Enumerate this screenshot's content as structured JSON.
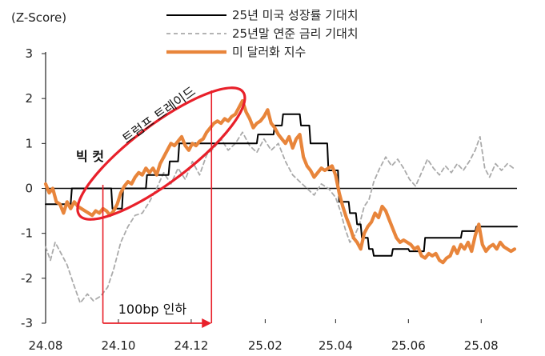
{
  "chart_data": {
    "type": "line",
    "unit_label": "(Z-Score)",
    "xlabel": "",
    "ylabel": "",
    "ylim": [
      -3,
      3
    ],
    "yticks": [
      3,
      2,
      1,
      0,
      -1,
      -2,
      -3
    ],
    "xlim": [
      "2024-08-01",
      "2025-08-31"
    ],
    "xticks": [
      {
        "date": "2024-08-01",
        "label": "24.08"
      },
      {
        "date": "2024-10-01",
        "label": "24.10"
      },
      {
        "date": "2024-12-01",
        "label": "24.12"
      },
      {
        "date": "2025-02-01",
        "label": "25.02"
      },
      {
        "date": "2025-04-01",
        "label": "25.04"
      },
      {
        "date": "2025-06-01",
        "label": "25.06"
      },
      {
        "date": "2025-08-01",
        "label": "25.08"
      }
    ],
    "grid": false,
    "legend_position": "top-right",
    "series": [
      {
        "name": "25년 미국 성장률 기대치",
        "color": "#000000",
        "style": "solid",
        "kind": "step",
        "points": [
          [
            "2024-08-01",
            -0.35
          ],
          [
            "2024-08-22",
            -0.35
          ],
          [
            "2024-08-23",
            0.0
          ],
          [
            "2024-09-25",
            0.0
          ],
          [
            "2024-09-26",
            -0.45
          ],
          [
            "2024-10-04",
            -0.45
          ],
          [
            "2024-10-05",
            0.0
          ],
          [
            "2024-10-24",
            0.0
          ],
          [
            "2024-10-25",
            0.3
          ],
          [
            "2024-11-12",
            0.3
          ],
          [
            "2024-11-13",
            0.6
          ],
          [
            "2024-11-20",
            0.6
          ],
          [
            "2024-11-21",
            1.0
          ],
          [
            "2025-01-25",
            1.0
          ],
          [
            "2025-01-26",
            1.2
          ],
          [
            "2025-02-08",
            1.2
          ],
          [
            "2025-02-09",
            1.4
          ],
          [
            "2025-02-15",
            1.4
          ],
          [
            "2025-02-16",
            1.65
          ],
          [
            "2025-03-02",
            1.65
          ],
          [
            "2025-03-03",
            1.4
          ],
          [
            "2025-03-10",
            1.4
          ],
          [
            "2025-03-11",
            1.0
          ],
          [
            "2025-03-25",
            1.0
          ],
          [
            "2025-03-26",
            0.4
          ],
          [
            "2025-04-03",
            0.4
          ],
          [
            "2025-04-04",
            -0.3
          ],
          [
            "2025-04-12",
            -0.3
          ],
          [
            "2025-04-13",
            -0.55
          ],
          [
            "2025-04-18",
            -0.55
          ],
          [
            "2025-04-19",
            -0.8
          ],
          [
            "2025-04-22",
            -0.8
          ],
          [
            "2025-04-23",
            -1.1
          ],
          [
            "2025-04-28",
            -1.1
          ],
          [
            "2025-04-29",
            -1.35
          ],
          [
            "2025-05-02",
            -1.35
          ],
          [
            "2025-05-03",
            -1.5
          ],
          [
            "2025-05-18",
            -1.5
          ],
          [
            "2025-05-19",
            -1.35
          ],
          [
            "2025-06-01",
            -1.35
          ],
          [
            "2025-06-02",
            -1.4
          ],
          [
            "2025-06-14",
            -1.4
          ],
          [
            "2025-06-15",
            -1.1
          ],
          [
            "2025-07-15",
            -1.1
          ],
          [
            "2025-07-16",
            -0.95
          ],
          [
            "2025-07-27",
            -0.95
          ],
          [
            "2025-07-28",
            -0.85
          ],
          [
            "2025-08-31",
            -0.85
          ]
        ]
      },
      {
        "name": "25년말 연준 금리 기대치",
        "color": "#aaaaaa",
        "style": "dashed",
        "kind": "line",
        "points": [
          [
            "2024-08-01",
            -1.3
          ],
          [
            "2024-08-05",
            -1.6
          ],
          [
            "2024-08-09",
            -1.2
          ],
          [
            "2024-08-14",
            -1.45
          ],
          [
            "2024-08-19",
            -1.7
          ],
          [
            "2024-08-24",
            -2.1
          ],
          [
            "2024-08-30",
            -2.55
          ],
          [
            "2024-09-05",
            -2.35
          ],
          [
            "2024-09-10",
            -2.5
          ],
          [
            "2024-09-16",
            -2.4
          ],
          [
            "2024-09-22",
            -2.2
          ],
          [
            "2024-09-27",
            -1.8
          ],
          [
            "2024-10-03",
            -1.2
          ],
          [
            "2024-10-09",
            -0.85
          ],
          [
            "2024-10-15",
            -0.6
          ],
          [
            "2024-10-21",
            -0.55
          ],
          [
            "2024-10-27",
            -0.3
          ],
          [
            "2024-11-02",
            0.0
          ],
          [
            "2024-11-08",
            0.35
          ],
          [
            "2024-11-14",
            0.1
          ],
          [
            "2024-11-20",
            0.45
          ],
          [
            "2024-11-26",
            0.2
          ],
          [
            "2024-12-02",
            0.6
          ],
          [
            "2024-12-08",
            0.3
          ],
          [
            "2024-12-14",
            0.75
          ],
          [
            "2024-12-20",
            0.9
          ],
          [
            "2024-12-26",
            1.1
          ],
          [
            "2025-01-01",
            0.85
          ],
          [
            "2025-01-07",
            1.0
          ],
          [
            "2025-01-13",
            1.25
          ],
          [
            "2025-01-19",
            0.95
          ],
          [
            "2025-01-25",
            0.8
          ],
          [
            "2025-01-31",
            1.1
          ],
          [
            "2025-02-06",
            0.85
          ],
          [
            "2025-02-12",
            1.0
          ],
          [
            "2025-02-18",
            0.6
          ],
          [
            "2025-02-24",
            0.3
          ],
          [
            "2025-03-02",
            0.15
          ],
          [
            "2025-03-08",
            0.0
          ],
          [
            "2025-03-14",
            -0.15
          ],
          [
            "2025-03-20",
            0.1
          ],
          [
            "2025-03-26",
            0.0
          ],
          [
            "2025-04-01",
            -0.2
          ],
          [
            "2025-04-05",
            -0.5
          ],
          [
            "2025-04-09",
            -0.9
          ],
          [
            "2025-04-13",
            -1.2
          ],
          [
            "2025-04-17",
            -1.05
          ],
          [
            "2025-04-21",
            -0.8
          ],
          [
            "2025-04-25",
            -0.4
          ],
          [
            "2025-04-29",
            -0.25
          ],
          [
            "2025-05-03",
            0.15
          ],
          [
            "2025-05-08",
            0.45
          ],
          [
            "2025-05-13",
            0.7
          ],
          [
            "2025-05-18",
            0.5
          ],
          [
            "2025-05-23",
            0.65
          ],
          [
            "2025-05-28",
            0.45
          ],
          [
            "2025-06-02",
            0.2
          ],
          [
            "2025-06-07",
            0.05
          ],
          [
            "2025-06-12",
            0.35
          ],
          [
            "2025-06-17",
            0.65
          ],
          [
            "2025-06-22",
            0.45
          ],
          [
            "2025-06-27",
            0.3
          ],
          [
            "2025-07-02",
            0.5
          ],
          [
            "2025-07-07",
            0.35
          ],
          [
            "2025-07-12",
            0.55
          ],
          [
            "2025-07-17",
            0.4
          ],
          [
            "2025-07-22",
            0.6
          ],
          [
            "2025-07-27",
            0.85
          ],
          [
            "2025-07-31",
            1.15
          ],
          [
            "2025-08-04",
            0.45
          ],
          [
            "2025-08-08",
            0.25
          ],
          [
            "2025-08-13",
            0.55
          ],
          [
            "2025-08-18",
            0.4
          ],
          [
            "2025-08-23",
            0.55
          ],
          [
            "2025-08-28",
            0.45
          ]
        ]
      },
      {
        "name": "미 달러화 지수",
        "color": "#e8853b",
        "style": "solid-thick",
        "kind": "line",
        "points": [
          [
            "2024-08-01",
            0.1
          ],
          [
            "2024-08-04",
            -0.1
          ],
          [
            "2024-08-07",
            0.0
          ],
          [
            "2024-08-10",
            -0.3
          ],
          [
            "2024-08-13",
            -0.35
          ],
          [
            "2024-08-16",
            -0.55
          ],
          [
            "2024-08-19",
            -0.3
          ],
          [
            "2024-08-22",
            -0.45
          ],
          [
            "2024-08-25",
            -0.3
          ],
          [
            "2024-08-28",
            -0.4
          ],
          [
            "2024-08-31",
            -0.45
          ],
          [
            "2024-09-03",
            -0.5
          ],
          [
            "2024-09-06",
            -0.55
          ],
          [
            "2024-09-09",
            -0.6
          ],
          [
            "2024-09-12",
            -0.5
          ],
          [
            "2024-09-15",
            -0.55
          ],
          [
            "2024-09-18",
            -0.45
          ],
          [
            "2024-09-21",
            -0.5
          ],
          [
            "2024-09-24",
            -0.6
          ],
          [
            "2024-09-27",
            -0.5
          ],
          [
            "2024-09-30",
            -0.35
          ],
          [
            "2024-10-03",
            -0.1
          ],
          [
            "2024-10-06",
            0.05
          ],
          [
            "2024-10-09",
            0.15
          ],
          [
            "2024-10-12",
            0.1
          ],
          [
            "2024-10-15",
            0.25
          ],
          [
            "2024-10-18",
            0.35
          ],
          [
            "2024-10-21",
            0.3
          ],
          [
            "2024-10-24",
            0.45
          ],
          [
            "2024-10-27",
            0.35
          ],
          [
            "2024-10-30",
            0.45
          ],
          [
            "2024-11-02",
            0.3
          ],
          [
            "2024-11-05",
            0.55
          ],
          [
            "2024-11-08",
            0.7
          ],
          [
            "2024-11-11",
            0.85
          ],
          [
            "2024-11-14",
            1.0
          ],
          [
            "2024-11-17",
            0.95
          ],
          [
            "2024-11-20",
            1.05
          ],
          [
            "2024-11-23",
            1.15
          ],
          [
            "2024-11-26",
            0.95
          ],
          [
            "2024-11-29",
            0.85
          ],
          [
            "2024-12-02",
            1.0
          ],
          [
            "2024-12-05",
            0.95
          ],
          [
            "2024-12-08",
            1.05
          ],
          [
            "2024-12-11",
            1.1
          ],
          [
            "2024-12-14",
            1.25
          ],
          [
            "2024-12-17",
            1.35
          ],
          [
            "2024-12-20",
            1.45
          ],
          [
            "2024-12-23",
            1.5
          ],
          [
            "2024-12-26",
            1.45
          ],
          [
            "2024-12-29",
            1.55
          ],
          [
            "2025-01-01",
            1.5
          ],
          [
            "2025-01-04",
            1.6
          ],
          [
            "2025-01-07",
            1.65
          ],
          [
            "2025-01-10",
            1.8
          ],
          [
            "2025-01-13",
            1.95
          ],
          [
            "2025-01-16",
            1.7
          ],
          [
            "2025-01-19",
            1.55
          ],
          [
            "2025-01-22",
            1.35
          ],
          [
            "2025-01-25",
            1.45
          ],
          [
            "2025-01-28",
            1.5
          ],
          [
            "2025-01-31",
            1.6
          ],
          [
            "2025-02-03",
            1.75
          ],
          [
            "2025-02-06",
            1.45
          ],
          [
            "2025-02-09",
            1.35
          ],
          [
            "2025-02-12",
            1.2
          ],
          [
            "2025-02-15",
            1.1
          ],
          [
            "2025-02-18",
            1.0
          ],
          [
            "2025-02-21",
            1.15
          ],
          [
            "2025-02-24",
            0.9
          ],
          [
            "2025-02-27",
            1.1
          ],
          [
            "2025-03-02",
            1.2
          ],
          [
            "2025-03-05",
            0.7
          ],
          [
            "2025-03-08",
            0.5
          ],
          [
            "2025-03-11",
            0.4
          ],
          [
            "2025-03-14",
            0.25
          ],
          [
            "2025-03-17",
            0.35
          ],
          [
            "2025-03-20",
            0.45
          ],
          [
            "2025-03-23",
            0.4
          ],
          [
            "2025-03-26",
            0.45
          ],
          [
            "2025-03-29",
            0.5
          ],
          [
            "2025-04-01",
            0.3
          ],
          [
            "2025-04-04",
            -0.1
          ],
          [
            "2025-04-07",
            -0.4
          ],
          [
            "2025-04-10",
            -0.65
          ],
          [
            "2025-04-13",
            -0.85
          ],
          [
            "2025-04-16",
            -1.1
          ],
          [
            "2025-04-19",
            -1.2
          ],
          [
            "2025-04-22",
            -1.35
          ],
          [
            "2025-04-25",
            -1.0
          ],
          [
            "2025-04-28",
            -0.85
          ],
          [
            "2025-05-01",
            -0.75
          ],
          [
            "2025-05-04",
            -0.55
          ],
          [
            "2025-05-07",
            -0.65
          ],
          [
            "2025-05-10",
            -0.4
          ],
          [
            "2025-05-13",
            -0.5
          ],
          [
            "2025-05-16",
            -0.7
          ],
          [
            "2025-05-19",
            -0.9
          ],
          [
            "2025-05-22",
            -1.1
          ],
          [
            "2025-05-25",
            -1.2
          ],
          [
            "2025-05-28",
            -1.15
          ],
          [
            "2025-05-31",
            -1.2
          ],
          [
            "2025-06-03",
            -1.25
          ],
          [
            "2025-06-06",
            -1.35
          ],
          [
            "2025-06-09",
            -1.3
          ],
          [
            "2025-06-12",
            -1.5
          ],
          [
            "2025-06-15",
            -1.55
          ],
          [
            "2025-06-18",
            -1.45
          ],
          [
            "2025-06-21",
            -1.5
          ],
          [
            "2025-06-24",
            -1.45
          ],
          [
            "2025-06-27",
            -1.6
          ],
          [
            "2025-06-30",
            -1.65
          ],
          [
            "2025-07-03",
            -1.55
          ],
          [
            "2025-07-06",
            -1.5
          ],
          [
            "2025-07-09",
            -1.3
          ],
          [
            "2025-07-12",
            -1.45
          ],
          [
            "2025-07-15",
            -1.25
          ],
          [
            "2025-07-18",
            -1.35
          ],
          [
            "2025-07-21",
            -1.2
          ],
          [
            "2025-07-24",
            -1.4
          ],
          [
            "2025-07-27",
            -1.05
          ],
          [
            "2025-07-30",
            -0.8
          ],
          [
            "2025-08-02",
            -1.25
          ],
          [
            "2025-08-05",
            -1.4
          ],
          [
            "2025-08-08",
            -1.3
          ],
          [
            "2025-08-11",
            -1.25
          ],
          [
            "2025-08-14",
            -1.35
          ],
          [
            "2025-08-17",
            -1.2
          ],
          [
            "2025-08-20",
            -1.3
          ],
          [
            "2025-08-23",
            -1.35
          ],
          [
            "2025-08-26",
            -1.4
          ],
          [
            "2025-08-29",
            -1.35
          ]
        ]
      }
    ],
    "annotations": {
      "big_cut_label": "빅 컷",
      "big_cut_date": "2024-09-18",
      "trump_trade_label": "트럼프 트레이드",
      "cut_range_label": "100bp 인하",
      "cut_range_start": "2024-09-18",
      "cut_range_end": "2024-12-18",
      "highlight_color": "#e8202a"
    }
  }
}
